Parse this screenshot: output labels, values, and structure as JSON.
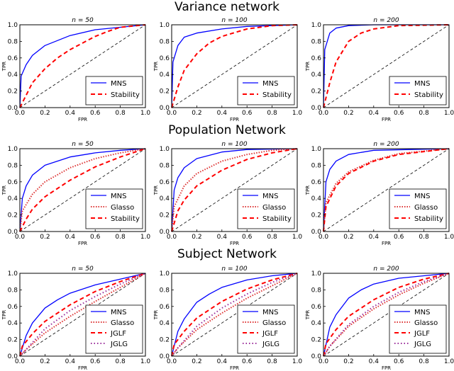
{
  "sections": [
    "Variance network",
    "Population Network",
    "Subject Network"
  ],
  "series_styles": {
    "MNS": {
      "color": "#0000ff",
      "dash": ""
    },
    "Stability": {
      "color": "#ff0000",
      "dash": "6,4"
    },
    "Glasso": {
      "color": "#dd3333",
      "dash": "1.5,2"
    },
    "JGLF": {
      "color": "#ff0000",
      "dash": "6,4"
    },
    "JGLG": {
      "color": "#9b2d9b",
      "dash": "1.5,3"
    },
    "diagonal": {
      "color": "#000000",
      "dash": "4,3"
    }
  },
  "chart_data": [
    {
      "type": "line",
      "section": 0,
      "title": "n = 50",
      "xlabel": "FPR",
      "ylabel": "TPR",
      "xlim": [
        0,
        1
      ],
      "ylim": [
        0,
        1
      ],
      "legend": "lower-right",
      "xticks": [
        "0.0",
        "0.2",
        "0.4",
        "0.6",
        "0.8",
        "1.0"
      ],
      "yticks": [
        "0.0",
        "0.2",
        "0.4",
        "0.6",
        "0.8",
        "1.0"
      ],
      "series": [
        {
          "name": "MNS",
          "x": [
            0,
            0.01,
            0.05,
            0.1,
            0.2,
            0.4,
            0.6,
            0.8,
            1
          ],
          "y": [
            0,
            0.38,
            0.52,
            0.63,
            0.75,
            0.87,
            0.94,
            0.97,
            1
          ]
        },
        {
          "name": "Stability",
          "x": [
            0,
            0.05,
            0.1,
            0.2,
            0.3,
            0.4,
            0.5,
            0.6,
            0.7,
            0.8,
            1
          ],
          "y": [
            0,
            0.15,
            0.3,
            0.47,
            0.6,
            0.7,
            0.78,
            0.86,
            0.92,
            0.97,
            1
          ]
        }
      ]
    },
    {
      "type": "line",
      "section": 0,
      "title": "n = 100",
      "xlabel": "FPR",
      "ylabel": "TPR",
      "xlim": [
        0,
        1
      ],
      "ylim": [
        0,
        1
      ],
      "legend": "lower-right",
      "xticks": [
        "0.0",
        "0.2",
        "0.4",
        "0.6",
        "0.8",
        "1.0"
      ],
      "yticks": [
        "0.0",
        "0.2",
        "0.4",
        "0.6",
        "0.8",
        "1.0"
      ],
      "series": [
        {
          "name": "MNS",
          "x": [
            0,
            0.01,
            0.05,
            0.1,
            0.2,
            0.4,
            0.6,
            1
          ],
          "y": [
            0,
            0.55,
            0.75,
            0.85,
            0.9,
            0.95,
            0.98,
            1
          ]
        },
        {
          "name": "Stability",
          "x": [
            0,
            0.05,
            0.1,
            0.2,
            0.3,
            0.4,
            0.6,
            0.8,
            1
          ],
          "y": [
            0,
            0.25,
            0.45,
            0.65,
            0.78,
            0.86,
            0.95,
            0.99,
            1
          ]
        }
      ]
    },
    {
      "type": "line",
      "section": 0,
      "title": "n = 200",
      "xlabel": "FPR",
      "ylabel": "TPR",
      "xlim": [
        0,
        1
      ],
      "ylim": [
        0,
        1
      ],
      "legend": "lower-right",
      "xticks": [
        "0.0",
        "0.2",
        "0.4",
        "0.6",
        "0.8",
        "1.0"
      ],
      "yticks": [
        "0.0",
        "0.2",
        "0.4",
        "0.6",
        "0.8",
        "1.0"
      ],
      "series": [
        {
          "name": "MNS",
          "x": [
            0,
            0.01,
            0.05,
            0.1,
            0.2,
            0.4,
            1
          ],
          "y": [
            0,
            0.7,
            0.9,
            0.96,
            0.99,
            1,
            1
          ]
        },
        {
          "name": "Stability",
          "x": [
            0,
            0.05,
            0.1,
            0.2,
            0.3,
            0.4,
            0.6,
            1
          ],
          "y": [
            0,
            0.3,
            0.55,
            0.8,
            0.9,
            0.95,
            0.99,
            1
          ]
        }
      ]
    },
    {
      "type": "line",
      "section": 1,
      "title": "n = 50",
      "xlabel": "FPR",
      "ylabel": "TPR",
      "xlim": [
        0,
        1
      ],
      "ylim": [
        0,
        1
      ],
      "legend": "lower-right",
      "xticks": [
        "0.0",
        "0.2",
        "0.4",
        "0.6",
        "0.8",
        "1.0"
      ],
      "yticks": [
        "0.0",
        "0.2",
        "0.4",
        "0.6",
        "0.8",
        "1.0"
      ],
      "series": [
        {
          "name": "MNS",
          "x": [
            0,
            0.02,
            0.05,
            0.1,
            0.2,
            0.4,
            0.6,
            0.8,
            1
          ],
          "y": [
            0,
            0.4,
            0.55,
            0.68,
            0.8,
            0.9,
            0.95,
            0.98,
            1
          ]
        },
        {
          "name": "Glasso",
          "x": [
            0,
            0.02,
            0.1,
            0.2,
            0.4,
            0.6,
            0.8,
            1
          ],
          "y": [
            0,
            0.25,
            0.45,
            0.6,
            0.77,
            0.88,
            0.95,
            1
          ]
        },
        {
          "name": "Stability",
          "x": [
            0,
            0.05,
            0.1,
            0.2,
            0.4,
            0.6,
            0.8,
            1
          ],
          "y": [
            0,
            0.15,
            0.27,
            0.42,
            0.62,
            0.78,
            0.9,
            1
          ]
        }
      ]
    },
    {
      "type": "line",
      "section": 1,
      "title": "n = 100",
      "xlabel": "FPR",
      "ylabel": "TPR",
      "xlim": [
        0,
        1
      ],
      "ylim": [
        0,
        1
      ],
      "legend": "lower-right",
      "xticks": [
        "0.0",
        "0.2",
        "0.4",
        "0.6",
        "0.8",
        "1.0"
      ],
      "yticks": [
        "0.0",
        "0.2",
        "0.4",
        "0.6",
        "0.8",
        "1.0"
      ],
      "series": [
        {
          "name": "MNS",
          "x": [
            0,
            0.02,
            0.05,
            0.1,
            0.2,
            0.4,
            0.6,
            1
          ],
          "y": [
            0,
            0.5,
            0.65,
            0.77,
            0.88,
            0.96,
            0.99,
            1
          ]
        },
        {
          "name": "Glasso",
          "x": [
            0,
            0.02,
            0.1,
            0.2,
            0.4,
            0.6,
            0.8,
            1
          ],
          "y": [
            0,
            0.3,
            0.55,
            0.7,
            0.85,
            0.93,
            0.98,
            1
          ]
        },
        {
          "name": "Stability",
          "x": [
            0,
            0.05,
            0.1,
            0.2,
            0.4,
            0.6,
            0.8,
            1
          ],
          "y": [
            0,
            0.25,
            0.38,
            0.55,
            0.74,
            0.87,
            0.95,
            1
          ]
        }
      ]
    },
    {
      "type": "line",
      "section": 1,
      "title": "n = 200",
      "xlabel": "FPR",
      "ylabel": "TPR",
      "xlim": [
        0,
        1
      ],
      "ylim": [
        0,
        1
      ],
      "legend": "lower-right",
      "xticks": [
        "0.0",
        "0.2",
        "0.4",
        "0.6",
        "0.8",
        "1.0"
      ],
      "yticks": [
        "0.0",
        "0.2",
        "0.4",
        "0.6",
        "0.8",
        "1.0"
      ],
      "series": [
        {
          "name": "MNS",
          "x": [
            0,
            0.02,
            0.05,
            0.1,
            0.2,
            0.4,
            1
          ],
          "y": [
            0,
            0.6,
            0.75,
            0.85,
            0.93,
            0.98,
            1
          ]
        },
        {
          "name": "Glasso",
          "x": [
            0,
            0.02,
            0.1,
            0.2,
            0.4,
            0.6,
            1
          ],
          "y": [
            0,
            0.35,
            0.58,
            0.72,
            0.86,
            0.94,
            1
          ]
        },
        {
          "name": "Stability",
          "x": [
            0,
            0.02,
            0.1,
            0.2,
            0.4,
            0.6,
            1
          ],
          "y": [
            0,
            0.3,
            0.55,
            0.7,
            0.85,
            0.93,
            1
          ]
        }
      ]
    },
    {
      "type": "line",
      "section": 2,
      "title": "n = 50",
      "xlabel": "FPR",
      "ylabel": "TPR",
      "xlim": [
        0,
        1
      ],
      "ylim": [
        0,
        1
      ],
      "legend": "lower-right",
      "xticks": [
        "0.0",
        "0.2",
        "0.4",
        "0.6",
        "0.8",
        "1.0"
      ],
      "yticks": [
        "0.0",
        "0.2",
        "0.4",
        "0.6",
        "0.8",
        "1.0"
      ],
      "series": [
        {
          "name": "MNS",
          "x": [
            0,
            0.05,
            0.1,
            0.2,
            0.3,
            0.4,
            0.6,
            0.8,
            1
          ],
          "y": [
            0,
            0.25,
            0.4,
            0.58,
            0.68,
            0.76,
            0.86,
            0.93,
            1
          ]
        },
        {
          "name": "Glasso",
          "x": [
            0,
            0.05,
            0.2,
            0.4,
            0.6,
            0.8,
            1
          ],
          "y": [
            0,
            0.08,
            0.28,
            0.48,
            0.66,
            0.83,
            1
          ]
        },
        {
          "name": "JGLF",
          "x": [
            0,
            0.02,
            0.1,
            0.2,
            0.4,
            0.6,
            0.8,
            1
          ],
          "y": [
            0,
            0.12,
            0.27,
            0.42,
            0.62,
            0.78,
            0.9,
            1
          ]
        },
        {
          "name": "JGLG",
          "x": [
            0,
            0.05,
            0.2,
            0.4,
            0.6,
            0.8,
            1
          ],
          "y": [
            0,
            0.08,
            0.33,
            0.55,
            0.72,
            0.87,
            1
          ]
        }
      ]
    },
    {
      "type": "line",
      "section": 2,
      "title": "n = 100",
      "xlabel": "FPR",
      "ylabel": "TPR",
      "xlim": [
        0,
        1
      ],
      "ylim": [
        0,
        1
      ],
      "legend": "lower-right",
      "xticks": [
        "0.0",
        "0.2",
        "0.4",
        "0.6",
        "0.8",
        "1.0"
      ],
      "yticks": [
        "0.0",
        "0.2",
        "0.4",
        "0.6",
        "0.8",
        "1.0"
      ],
      "series": [
        {
          "name": "MNS",
          "x": [
            0,
            0.05,
            0.1,
            0.2,
            0.3,
            0.4,
            0.6,
            0.8,
            1
          ],
          "y": [
            0,
            0.3,
            0.45,
            0.65,
            0.75,
            0.83,
            0.92,
            0.97,
            1
          ]
        },
        {
          "name": "Glasso",
          "x": [
            0,
            0.05,
            0.2,
            0.4,
            0.6,
            0.8,
            1
          ],
          "y": [
            0,
            0.1,
            0.32,
            0.52,
            0.7,
            0.85,
            1
          ]
        },
        {
          "name": "JGLF",
          "x": [
            0,
            0.02,
            0.1,
            0.2,
            0.4,
            0.6,
            0.8,
            1
          ],
          "y": [
            0,
            0.14,
            0.3,
            0.46,
            0.66,
            0.81,
            0.92,
            1
          ]
        },
        {
          "name": "JGLG",
          "x": [
            0,
            0.05,
            0.2,
            0.4,
            0.6,
            0.8,
            1
          ],
          "y": [
            0,
            0.1,
            0.36,
            0.58,
            0.75,
            0.89,
            1
          ]
        }
      ]
    },
    {
      "type": "line",
      "section": 2,
      "title": "n = 200",
      "xlabel": "FPR",
      "ylabel": "TPR",
      "xlim": [
        0,
        1
      ],
      "ylim": [
        0,
        1
      ],
      "legend": "lower-right",
      "xticks": [
        "0.0",
        "0.2",
        "0.4",
        "0.6",
        "0.8",
        "1.0"
      ],
      "yticks": [
        "0.0",
        "0.2",
        "0.4",
        "0.6",
        "0.8",
        "1.0"
      ],
      "series": [
        {
          "name": "MNS",
          "x": [
            0,
            0.05,
            0.1,
            0.2,
            0.3,
            0.4,
            0.6,
            1
          ],
          "y": [
            0,
            0.35,
            0.5,
            0.7,
            0.8,
            0.87,
            0.94,
            1
          ]
        },
        {
          "name": "Glasso",
          "x": [
            0,
            0.05,
            0.2,
            0.4,
            0.6,
            0.8,
            1
          ],
          "y": [
            0,
            0.12,
            0.36,
            0.57,
            0.74,
            0.88,
            1
          ]
        },
        {
          "name": "JGLF",
          "x": [
            0,
            0.02,
            0.1,
            0.2,
            0.4,
            0.6,
            0.8,
            1
          ],
          "y": [
            0,
            0.15,
            0.32,
            0.48,
            0.68,
            0.83,
            0.93,
            1
          ]
        },
        {
          "name": "JGLG",
          "x": [
            0,
            0.05,
            0.2,
            0.4,
            0.6,
            0.8,
            1
          ],
          "y": [
            0,
            0.12,
            0.38,
            0.6,
            0.77,
            0.9,
            1
          ]
        }
      ]
    }
  ]
}
